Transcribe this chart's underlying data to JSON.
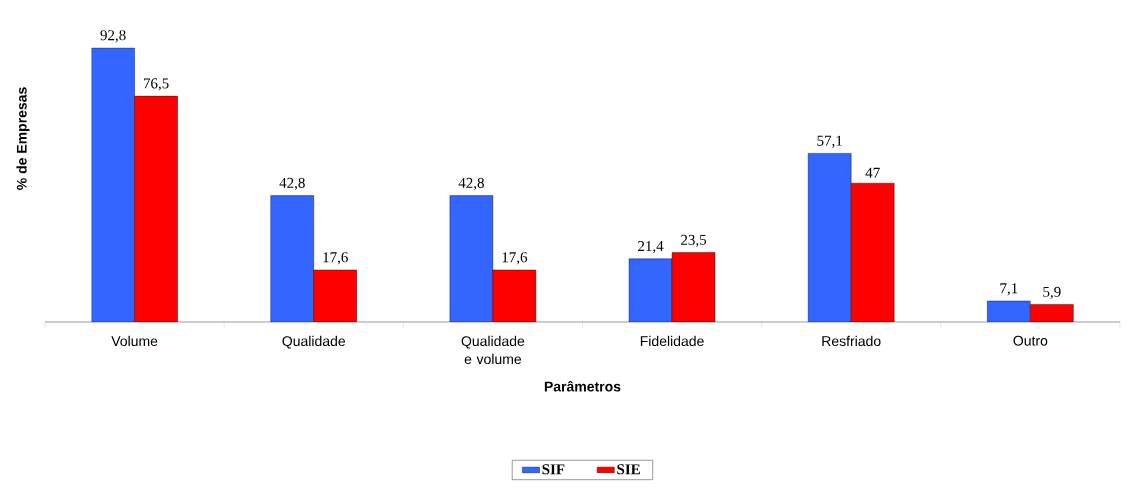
{
  "chart_data": {
    "type": "bar",
    "xlabel": "Parâmetros",
    "ylabel": "% de Empresas",
    "categories": [
      "Volume",
      "Qualidade",
      "Qualidade e volume",
      "Fidelidade",
      "Resfriado",
      "Outro"
    ],
    "series": [
      {
        "name": "SIF",
        "color": "#3366ff",
        "values": [
          92.8,
          42.8,
          42.8,
          21.4,
          57.1,
          7.1
        ],
        "value_labels": [
          "92,8",
          "42,8",
          "42,8",
          "21,4",
          "57,1",
          "7,1"
        ]
      },
      {
        "name": "SIE",
        "color": "#ff0000",
        "values": [
          76.5,
          17.6,
          17.6,
          23.5,
          47,
          5.9
        ],
        "value_labels": [
          "76,5",
          "17,6",
          "17,6",
          "23,5",
          "47",
          "5,9"
        ]
      }
    ],
    "legend": "bottom"
  }
}
